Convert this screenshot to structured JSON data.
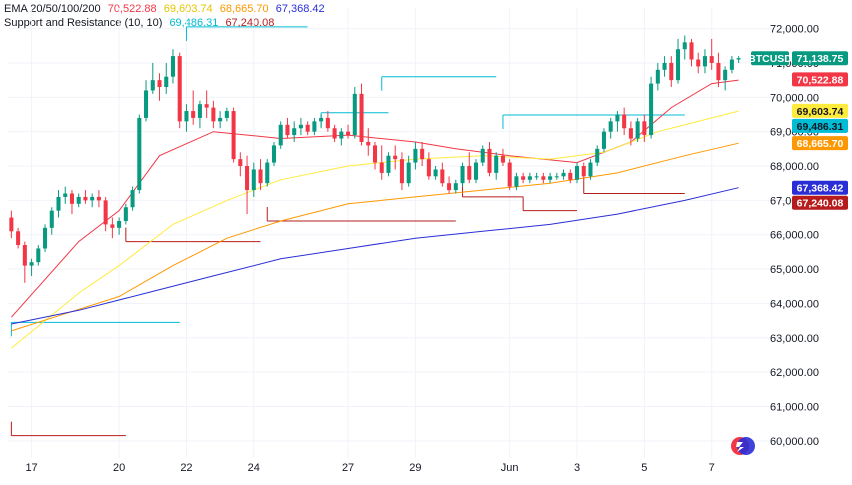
{
  "legend": {
    "ema_label": "EMA 20/50/100/200",
    "ema_values": [
      {
        "value": "70,522.88",
        "color": "#f23645"
      },
      {
        "value": "69,603.74",
        "color": "#ffeb3b"
      },
      {
        "value": "68,665.70",
        "color": "#ff9800"
      },
      {
        "value": "67,368.42",
        "color": "#2a2ed6"
      }
    ],
    "sr_label": "Support and Resistance (10, 10)",
    "sr_values": [
      {
        "value": "69,486.31",
        "color": "#00bcd4"
      },
      {
        "value": "67,240.08",
        "color": "#b71c1c"
      }
    ]
  },
  "symbol": "BTCUSD",
  "last_price": "71,138.75",
  "colors": {
    "up": "#089981",
    "down": "#f23645",
    "ema20": "#f23645",
    "ema50": "#ffeb3b",
    "ema100": "#ff9800",
    "ema200": "#2a2ed6",
    "resistance": "#00bcd4",
    "support": "#b71c1c",
    "grid": "#f0f3fa",
    "axis_text": "#131722"
  },
  "chart_data": {
    "type": "candlestick",
    "title": "",
    "xlabel": "",
    "ylabel": "",
    "y_ticks": [
      60000,
      61000,
      62000,
      63000,
      64000,
      65000,
      66000,
      67000,
      68000,
      69000,
      70000,
      71000,
      72000
    ],
    "y_tick_labels": [
      "60,000.00",
      "61,000.00",
      "62,000.00",
      "63,000.00",
      "64,000.00",
      "65,000.00",
      "66,000.00",
      "67,000.00",
      "68,000.00",
      "69,000.00",
      "70,000.00",
      "71,000.00",
      "72,000.00"
    ],
    "ylim": [
      59500,
      72600
    ],
    "x_labels": [
      {
        "label": "17",
        "bar": 3
      },
      {
        "label": "20",
        "bar": 16
      },
      {
        "label": "22",
        "bar": 26
      },
      {
        "label": "24",
        "bar": 36
      },
      {
        "label": "27",
        "bar": 50
      },
      {
        "label": "29",
        "bar": 60
      },
      {
        "label": "Jun",
        "bar": 74
      },
      {
        "label": "3",
        "bar": 84
      },
      {
        "label": "5",
        "bar": 94
      },
      {
        "label": "7",
        "bar": 104
      }
    ],
    "candles": [
      [
        66500,
        66700,
        65900,
        66100
      ],
      [
        66100,
        66200,
        65600,
        65700
      ],
      [
        65700,
        65800,
        64600,
        65100
      ],
      [
        65100,
        65300,
        64800,
        65200
      ],
      [
        65200,
        65700,
        65100,
        65600
      ],
      [
        65600,
        66300,
        65500,
        66200
      ],
      [
        66200,
        66800,
        66000,
        66700
      ],
      [
        66700,
        67300,
        66500,
        67100
      ],
      [
        67100,
        67400,
        66900,
        67200
      ],
      [
        67200,
        67300,
        66600,
        66900
      ],
      [
        66900,
        67200,
        66800,
        67100
      ],
      [
        67100,
        67300,
        66900,
        67000
      ],
      [
        67000,
        67200,
        66800,
        67100
      ],
      [
        67100,
        67300,
        66800,
        67000
      ],
      [
        67000,
        67100,
        66100,
        66300
      ],
      [
        66300,
        66500,
        65900,
        66200
      ],
      [
        66200,
        66500,
        66000,
        66400
      ],
      [
        66400,
        66900,
        66300,
        66800
      ],
      [
        66800,
        67400,
        66700,
        67300
      ],
      [
        67300,
        69500,
        67200,
        69400
      ],
      [
        69400,
        70500,
        69300,
        70200
      ],
      [
        70200,
        71000,
        70100,
        70500
      ],
      [
        70500,
        70700,
        69900,
        70300
      ],
      [
        70300,
        71000,
        70100,
        70600
      ],
      [
        70600,
        71400,
        70400,
        71200
      ],
      [
        71200,
        71300,
        69100,
        69300
      ],
      [
        69300,
        69800,
        69000,
        69600
      ],
      [
        69600,
        70200,
        69200,
        69400
      ],
      [
        69400,
        69900,
        69100,
        69800
      ],
      [
        69800,
        70200,
        69400,
        69700
      ],
      [
        69700,
        69900,
        69100,
        69300
      ],
      [
        69300,
        69600,
        69100,
        69400
      ],
      [
        69400,
        69700,
        69300,
        69600
      ],
      [
        69600,
        69700,
        68100,
        68200
      ],
      [
        68200,
        68400,
        67700,
        68000
      ],
      [
        68000,
        68300,
        66600,
        67300
      ],
      [
        67300,
        68100,
        67100,
        67900
      ],
      [
        67900,
        68200,
        67300,
        67500
      ],
      [
        67500,
        68200,
        67400,
        68100
      ],
      [
        68100,
        68700,
        68000,
        68600
      ],
      [
        68600,
        69300,
        68500,
        69200
      ],
      [
        69200,
        69400,
        68800,
        68900
      ],
      [
        68900,
        69300,
        68700,
        69100
      ],
      [
        69100,
        69400,
        68900,
        69200
      ],
      [
        69200,
        69300,
        68900,
        69000
      ],
      [
        69000,
        69400,
        68900,
        69300
      ],
      [
        69300,
        69500,
        69100,
        69400
      ],
      [
        69400,
        69600,
        69000,
        69100
      ],
      [
        69100,
        69200,
        68700,
        68800
      ],
      [
        68800,
        69100,
        68600,
        69000
      ],
      [
        69000,
        69200,
        68800,
        68900
      ],
      [
        68900,
        70300,
        68800,
        70100
      ],
      [
        70100,
        70400,
        68600,
        68700
      ],
      [
        68700,
        69100,
        68300,
        68600
      ],
      [
        68600,
        68700,
        67900,
        68100
      ],
      [
        68100,
        68600,
        67600,
        67800
      ],
      [
        67800,
        68400,
        67700,
        68300
      ],
      [
        68300,
        68600,
        67900,
        68200
      ],
      [
        68200,
        68400,
        67300,
        67500
      ],
      [
        67500,
        68300,
        67400,
        68100
      ],
      [
        68100,
        68700,
        67900,
        68500
      ],
      [
        68500,
        68700,
        68000,
        68200
      ],
      [
        68200,
        68400,
        67600,
        67700
      ],
      [
        67700,
        68000,
        67600,
        67900
      ],
      [
        67900,
        68100,
        67400,
        67500
      ],
      [
        67500,
        67700,
        67200,
        67300
      ],
      [
        67300,
        67600,
        67200,
        67500
      ],
      [
        67500,
        68100,
        67400,
        68000
      ],
      [
        68000,
        68400,
        67500,
        67600
      ],
      [
        67600,
        68200,
        67500,
        68100
      ],
      [
        68100,
        68600,
        68000,
        68500
      ],
      [
        68500,
        68700,
        67700,
        67800
      ],
      [
        67800,
        68400,
        67600,
        68300
      ],
      [
        68300,
        68500,
        68000,
        68100
      ],
      [
        68100,
        68200,
        67300,
        67400
      ],
      [
        67400,
        67800,
        67300,
        67700
      ],
      [
        67700,
        67800,
        67500,
        67600
      ],
      [
        67600,
        67800,
        67500,
        67700
      ],
      [
        67700,
        67800,
        67600,
        67700
      ],
      [
        67700,
        67800,
        67500,
        67600
      ],
      [
        67600,
        67800,
        67500,
        67700
      ],
      [
        67700,
        67800,
        67600,
        67700
      ],
      [
        67700,
        67900,
        67600,
        67800
      ],
      [
        67800,
        67900,
        67500,
        67600
      ],
      [
        67600,
        68100,
        67500,
        68000
      ],
      [
        68000,
        68100,
        67600,
        67700
      ],
      [
        67700,
        68200,
        67600,
        68100
      ],
      [
        68100,
        68600,
        68000,
        68500
      ],
      [
        68500,
        69100,
        68400,
        69000
      ],
      [
        69000,
        69400,
        68800,
        69300
      ],
      [
        69300,
        69600,
        69000,
        69500
      ],
      [
        69500,
        69700,
        68900,
        69100
      ],
      [
        69100,
        69300,
        68600,
        68800
      ],
      [
        68800,
        69400,
        68700,
        69300
      ],
      [
        69300,
        69500,
        68700,
        68900
      ],
      [
        68900,
        70600,
        68800,
        70400
      ],
      [
        70400,
        71000,
        70200,
        70800
      ],
      [
        70800,
        71200,
        70600,
        71000
      ],
      [
        71000,
        71200,
        70300,
        70500
      ],
      [
        70500,
        71700,
        70400,
        71400
      ],
      [
        71400,
        71800,
        71100,
        71600
      ],
      [
        71600,
        71700,
        70900,
        71100
      ],
      [
        71100,
        71300,
        70700,
        70900
      ],
      [
        70900,
        71400,
        70700,
        71200
      ],
      [
        71200,
        71700,
        70800,
        71000
      ],
      [
        71000,
        71300,
        70300,
        70500
      ],
      [
        70500,
        70900,
        70200,
        70800
      ],
      [
        70800,
        71200,
        70700,
        71100
      ],
      [
        71100,
        71200,
        71000,
        71139
      ]
    ],
    "ema": [
      {
        "period": 20,
        "points": [
          [
            0,
            63600
          ],
          [
            10,
            65800
          ],
          [
            16,
            66700
          ],
          [
            22,
            68300
          ],
          [
            30,
            69000
          ],
          [
            40,
            68800
          ],
          [
            50,
            68900
          ],
          [
            60,
            68700
          ],
          [
            66,
            68500
          ],
          [
            74,
            68300
          ],
          [
            84,
            68100
          ],
          [
            92,
            68700
          ],
          [
            98,
            69700
          ],
          [
            104,
            70400
          ],
          [
            108,
            70500
          ]
        ]
      },
      {
        "period": 50,
        "points": [
          [
            0,
            62700
          ],
          [
            10,
            64300
          ],
          [
            16,
            65100
          ],
          [
            24,
            66300
          ],
          [
            32,
            67000
          ],
          [
            40,
            67600
          ],
          [
            50,
            68000
          ],
          [
            60,
            68200
          ],
          [
            70,
            68300
          ],
          [
            80,
            68200
          ],
          [
            88,
            68400
          ],
          [
            96,
            69000
          ],
          [
            104,
            69400
          ],
          [
            108,
            69600
          ]
        ]
      },
      {
        "period": 100,
        "points": [
          [
            0,
            63200
          ],
          [
            8,
            63700
          ],
          [
            16,
            64200
          ],
          [
            24,
            65100
          ],
          [
            32,
            65900
          ],
          [
            40,
            66400
          ],
          [
            50,
            66900
          ],
          [
            60,
            67100
          ],
          [
            70,
            67300
          ],
          [
            80,
            67500
          ],
          [
            90,
            67800
          ],
          [
            100,
            68300
          ],
          [
            108,
            68665
          ]
        ]
      },
      {
        "period": 200,
        "points": [
          [
            0,
            63400
          ],
          [
            10,
            63800
          ],
          [
            20,
            64300
          ],
          [
            30,
            64800
          ],
          [
            40,
            65300
          ],
          [
            50,
            65600
          ],
          [
            60,
            65900
          ],
          [
            70,
            66100
          ],
          [
            80,
            66300
          ],
          [
            90,
            66600
          ],
          [
            100,
            67000
          ],
          [
            108,
            67368
          ]
        ]
      }
    ],
    "resistance_levels": [
      {
        "x1": 26,
        "x2": 44,
        "y": 72050
      },
      {
        "x1": 55,
        "x2": 72,
        "y": 70600
      },
      {
        "x1": 46,
        "x2": 56,
        "y": 69550
      },
      {
        "x1": 73,
        "x2": 100,
        "y": 69486
      },
      {
        "x1": 0,
        "x2": 25,
        "y": 63450
      }
    ],
    "support_levels": [
      {
        "x1": 17,
        "x2": 37,
        "y": 65800
      },
      {
        "x1": 38,
        "x2": 66,
        "y": 66400
      },
      {
        "x1": 67,
        "x2": 76,
        "y": 67100
      },
      {
        "x1": 76,
        "x2": 84,
        "y": 66700
      },
      {
        "x1": 85,
        "x2": 100,
        "y": 67200
      },
      {
        "x1": 0,
        "x2": 17,
        "y": 60150
      }
    ],
    "price_tags": [
      {
        "label": "BTCUSD",
        "value": "71,138.75",
        "price": 71138.75,
        "bg": "#089981",
        "fg": "#ffffff",
        "shows_symbol": true
      },
      {
        "value": "70,522.88",
        "price": 70522.88,
        "bg": "#f23645",
        "fg": "#ffffff"
      },
      {
        "value": "69,603.74",
        "price": 69603.74,
        "bg": "#ffeb3b",
        "fg": "#131722"
      },
      {
        "value": "69,486.31",
        "price": 69486.31,
        "bg": "#00bcd4",
        "fg": "#131722"
      },
      {
        "value": "68,665.70",
        "price": 68665.7,
        "bg": "#ff9800",
        "fg": "#ffffff"
      },
      {
        "value": "67,368.42",
        "price": 67368.42,
        "bg": "#2a2ed6",
        "fg": "#ffffff"
      },
      {
        "value": "67,240.08",
        "price": 67240.08,
        "bg": "#b71c1c",
        "fg": "#ffffff"
      }
    ]
  }
}
